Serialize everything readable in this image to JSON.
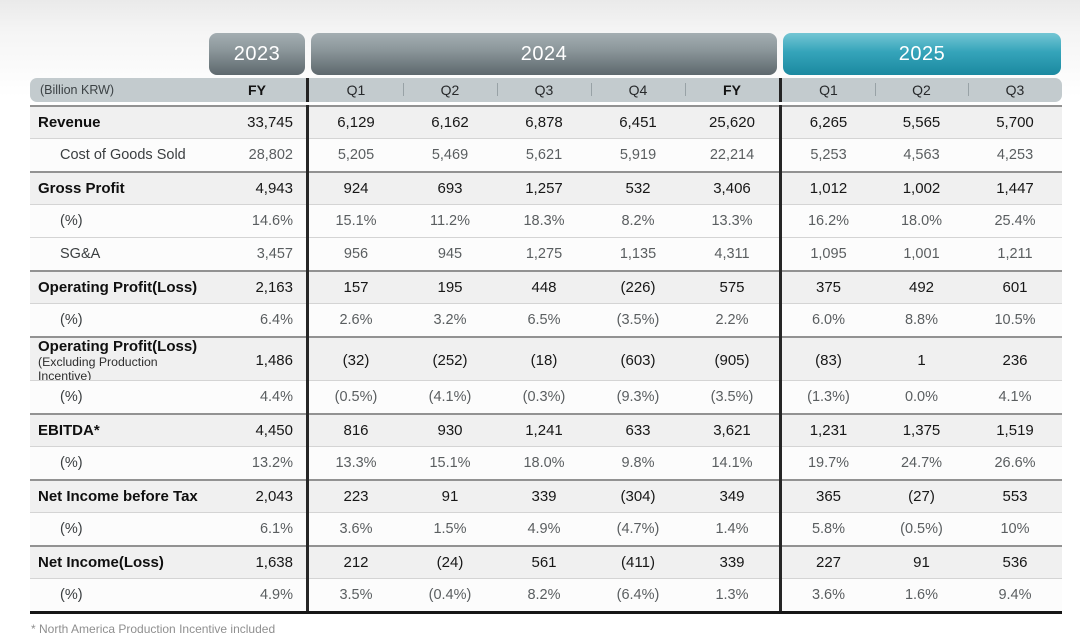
{
  "colors": {
    "teal_pill": "#2d9fb5",
    "gray_pill": "#8c979b",
    "header_bar": "#c3cbce"
  },
  "years": [
    {
      "label": "2023",
      "theme": "gray"
    },
    {
      "label": "2024",
      "theme": "gray"
    },
    {
      "label": "2025",
      "theme": "teal"
    }
  ],
  "table": {
    "unit_label": "(Billion KRW)",
    "columns": [
      "FY",
      "Q1",
      "Q2",
      "Q3",
      "Q4",
      "FY",
      "Q1",
      "Q2",
      "Q3"
    ],
    "rows": [
      {
        "label": "Revenue",
        "style": "main",
        "values": [
          "33,745",
          "6,129",
          "6,162",
          "6,878",
          "6,451",
          "25,620",
          "6,265",
          "5,565",
          "5,700"
        ]
      },
      {
        "label": "Cost of Goods Sold",
        "style": "sub",
        "values": [
          "28,802",
          "5,205",
          "5,469",
          "5,621",
          "5,919",
          "22,214",
          "5,253",
          "4,563",
          "4,253"
        ]
      },
      {
        "label": "Gross Profit",
        "style": "main",
        "values": [
          "4,943",
          "924",
          "693",
          "1,257",
          "532",
          "3,406",
          "1,012",
          "1,002",
          "1,447"
        ]
      },
      {
        "label": "(%)",
        "style": "pct",
        "values": [
          "14.6%",
          "15.1%",
          "11.2%",
          "18.3%",
          "8.2%",
          "13.3%",
          "16.2%",
          "18.0%",
          "25.4%"
        ]
      },
      {
        "label": "SG&A",
        "style": "sub",
        "values": [
          "3,457",
          "956",
          "945",
          "1,275",
          "1,135",
          "4,311",
          "1,095",
          "1,001",
          "1,211"
        ]
      },
      {
        "label": "Operating Profit(Loss)",
        "style": "main",
        "values": [
          "2,163",
          "157",
          "195",
          "448",
          "(226)",
          "575",
          "375",
          "492",
          "601"
        ]
      },
      {
        "label": "(%)",
        "style": "pct",
        "values": [
          "6.4%",
          "2.6%",
          "3.2%",
          "6.5%",
          "(3.5%)",
          "2.2%",
          "6.0%",
          "8.8%",
          "10.5%"
        ]
      },
      {
        "label": "Operating Profit(Loss)",
        "sublabel": "(Excluding Production Incentive)",
        "style": "main tall",
        "values": [
          "1,486",
          "(32)",
          "(252)",
          "(18)",
          "(603)",
          "(905)",
          "(83)",
          "1",
          "236"
        ]
      },
      {
        "label": "(%)",
        "style": "pct",
        "values": [
          "4.4%",
          "(0.5%)",
          "(4.1%)",
          "(0.3%)",
          "(9.3%)",
          "(3.5%)",
          "(1.3%)",
          "0.0%",
          "4.1%"
        ]
      },
      {
        "label": "EBITDA*",
        "style": "main",
        "values": [
          "4,450",
          "816",
          "930",
          "1,241",
          "633",
          "3,621",
          "1,231",
          "1,375",
          "1,519"
        ]
      },
      {
        "label": "(%)",
        "style": "pct",
        "values": [
          "13.2%",
          "13.3%",
          "15.1%",
          "18.0%",
          "9.8%",
          "14.1%",
          "19.7%",
          "24.7%",
          "26.6%"
        ]
      },
      {
        "label": "Net Income before Tax",
        "style": "main",
        "values": [
          "2,043",
          "223",
          "91",
          "339",
          "(304)",
          "349",
          "365",
          "(27)",
          "553"
        ]
      },
      {
        "label": "(%)",
        "style": "pct",
        "values": [
          "6.1%",
          "3.6%",
          "1.5%",
          "4.9%",
          "(4.7%)",
          "1.4%",
          "5.8%",
          "(0.5%)",
          "10%"
        ]
      },
      {
        "label": "Net Income(Loss)",
        "style": "main",
        "values": [
          "1,638",
          "212",
          "(24)",
          "561",
          "(411)",
          "339",
          "227",
          "91",
          "536"
        ]
      },
      {
        "label": "(%)",
        "style": "pct",
        "values": [
          "4.9%",
          "3.5%",
          "(0.4%)",
          "8.2%",
          "(6.4%)",
          "1.3%",
          "3.6%",
          "1.6%",
          "9.4%"
        ]
      }
    ]
  },
  "footnote": "* North America Production Incentive included"
}
